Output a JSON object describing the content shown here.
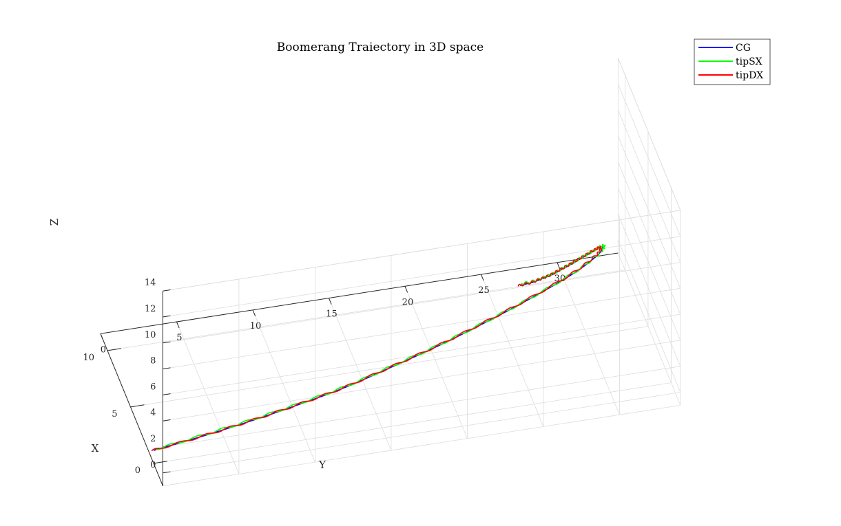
{
  "chart_data": {
    "type": "line",
    "title": "Boomerang Traiectory in 3D space",
    "xlabel": "X",
    "ylabel": "Y",
    "zlabel": "Z",
    "x_ticks": [
      "0",
      "5",
      "10"
    ],
    "y_ticks": [
      "0",
      "5",
      "10",
      "15",
      "20",
      "25",
      "30"
    ],
    "z_ticks": [
      "0",
      "2",
      "4",
      "6",
      "8",
      "10",
      "12",
      "14"
    ],
    "xlim": [
      -2,
      11.5
    ],
    "ylim": [
      0,
      34
    ],
    "zlim": [
      -1,
      14
    ],
    "grid": true,
    "legend_position": "top-right",
    "series": [
      {
        "name": "CG",
        "color": "#0000ff",
        "points": [
          [
            0.0,
            0.0,
            0.0
          ],
          [
            -0.6,
            3.0,
            1.05
          ],
          [
            -1.1,
            6.0,
            2.1
          ],
          [
            -1.55,
            9.0,
            3.2
          ],
          [
            -1.9,
            12.0,
            4.3
          ],
          [
            -2.15,
            15.0,
            5.55
          ],
          [
            -2.3,
            18.0,
            6.75
          ],
          [
            -2.3,
            21.0,
            7.95
          ],
          [
            -2.1,
            24.0,
            9.05
          ],
          [
            -1.6,
            27.0,
            10.0
          ],
          [
            -1.05,
            28.65,
            10.5
          ],
          [
            -0.5,
            29.3,
            10.5
          ],
          [
            0.2,
            29.5,
            10.1
          ],
          [
            1.0,
            29.35,
            9.2
          ],
          [
            2.0,
            29.1,
            8.0
          ],
          [
            3.0,
            28.85,
            6.8
          ],
          [
            4.0,
            28.6,
            5.6
          ],
          [
            5.0,
            28.3,
            4.4
          ],
          [
            6.0,
            28.0,
            3.2
          ],
          [
            7.0,
            27.7,
            2.1
          ],
          [
            8.0,
            27.3,
            1.0
          ],
          [
            9.0,
            26.8,
            0.0
          ]
        ]
      },
      {
        "name": "tipSX",
        "color": "#00ff00",
        "points": [
          [
            0.0,
            0.15,
            0.05
          ],
          [
            -0.6,
            3.15,
            1.15
          ],
          [
            -1.1,
            6.15,
            2.2
          ],
          [
            -1.55,
            9.15,
            3.3
          ],
          [
            -1.9,
            12.15,
            4.4
          ],
          [
            -2.15,
            15.15,
            5.65
          ],
          [
            -2.3,
            18.15,
            6.85
          ],
          [
            -2.3,
            21.15,
            8.05
          ],
          [
            -2.1,
            24.15,
            9.15
          ],
          [
            -1.6,
            27.1,
            10.1
          ],
          [
            -1.05,
            28.75,
            10.6
          ],
          [
            -0.5,
            29.4,
            10.6
          ],
          [
            0.2,
            29.6,
            10.2
          ],
          [
            1.0,
            29.45,
            9.3
          ],
          [
            2.0,
            29.2,
            8.1
          ],
          [
            3.0,
            28.95,
            6.9
          ],
          [
            4.0,
            28.7,
            5.7
          ],
          [
            5.0,
            28.4,
            4.5
          ],
          [
            6.0,
            28.1,
            3.3
          ],
          [
            7.0,
            27.8,
            2.2
          ],
          [
            8.0,
            27.4,
            1.1
          ],
          [
            9.0,
            26.9,
            0.1
          ]
        ]
      },
      {
        "name": "tipDX",
        "color": "#ff0000",
        "points": [
          [
            0.1,
            -0.1,
            -0.1
          ],
          [
            -0.5,
            2.9,
            0.95
          ],
          [
            -1.0,
            5.9,
            2.0
          ],
          [
            -1.45,
            8.9,
            3.1
          ],
          [
            -1.8,
            11.9,
            4.2
          ],
          [
            -2.05,
            14.9,
            5.45
          ],
          [
            -2.2,
            17.9,
            6.65
          ],
          [
            -2.2,
            20.9,
            7.85
          ],
          [
            -2.0,
            23.9,
            8.95
          ],
          [
            -1.5,
            26.9,
            9.9
          ],
          [
            -0.95,
            28.55,
            10.4
          ],
          [
            -0.4,
            29.2,
            10.4
          ],
          [
            0.3,
            29.4,
            10.0
          ],
          [
            1.1,
            29.25,
            9.1
          ],
          [
            2.1,
            29.0,
            7.9
          ],
          [
            3.1,
            28.75,
            6.7
          ],
          [
            4.1,
            28.5,
            5.5
          ],
          [
            5.1,
            28.2,
            4.3
          ],
          [
            6.1,
            27.9,
            3.1
          ],
          [
            7.1,
            27.6,
            2.0
          ],
          [
            8.1,
            27.2,
            0.9
          ],
          [
            9.1,
            26.7,
            -0.1
          ]
        ]
      }
    ]
  }
}
